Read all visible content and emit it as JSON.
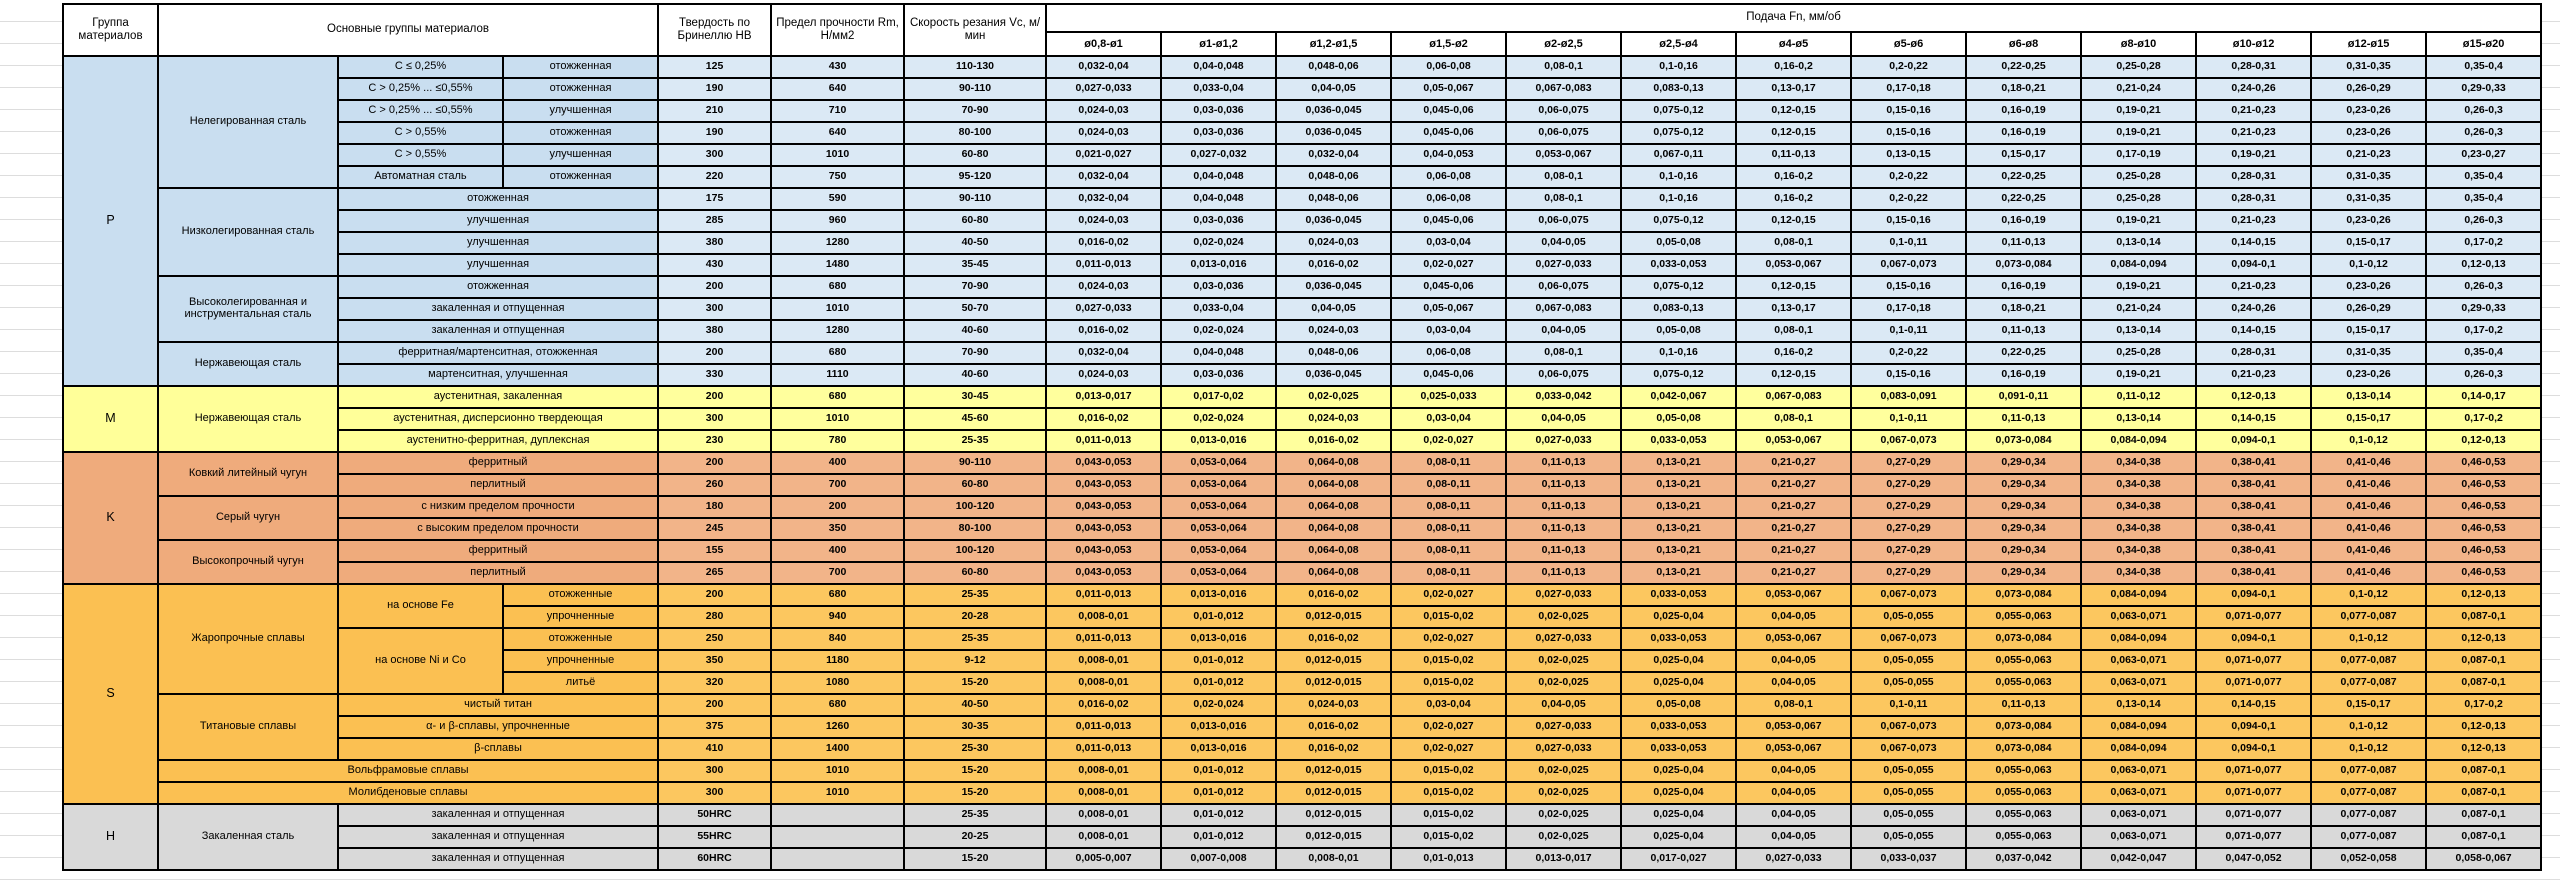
{
  "header": {
    "group": "Группа материалов",
    "materials": "Основные группы материалов",
    "hardness": "Твердость по Бринеллю HB",
    "strength": "Предел прочности Rm, Н/мм2",
    "speed": "Скорость резания Vc, м/мин",
    "feed": "Подача Fn, мм/об",
    "diameters": [
      "ø0,8-ø1",
      "ø1-ø1,2",
      "ø1,2-ø1,5",
      "ø1,5-ø2",
      "ø2-ø2,5",
      "ø2,5-ø4",
      "ø4-ø5",
      "ø5-ø6",
      "ø6-ø8",
      "ø8-ø10",
      "ø10-ø12",
      "ø12-ø15",
      "ø15-ø20"
    ]
  },
  "feed_patterns": {
    "A": [
      "0,032-0,04",
      "0,04-0,048",
      "0,048-0,06",
      "0,06-0,08",
      "0,08-0,1",
      "0,1-0,16",
      "0,16-0,2",
      "0,2-0,22",
      "0,22-0,25",
      "0,25-0,28",
      "0,28-0,31",
      "0,31-0,35",
      "0,35-0,4"
    ],
    "B": [
      "0,027-0,033",
      "0,033-0,04",
      "0,04-0,05",
      "0,05-0,067",
      "0,067-0,083",
      "0,083-0,13",
      "0,13-0,17",
      "0,17-0,18",
      "0,18-0,21",
      "0,21-0,24",
      "0,24-0,26",
      "0,26-0,29",
      "0,29-0,33"
    ],
    "C": [
      "0,024-0,03",
      "0,03-0,036",
      "0,036-0,045",
      "0,045-0,06",
      "0,06-0,075",
      "0,075-0,12",
      "0,12-0,15",
      "0,15-0,16",
      "0,16-0,19",
      "0,19-0,21",
      "0,21-0,23",
      "0,23-0,26",
      "0,26-0,3"
    ],
    "D": [
      "0,021-0,027",
      "0,027-0,032",
      "0,032-0,04",
      "0,04-0,053",
      "0,053-0,067",
      "0,067-0,11",
      "0,11-0,13",
      "0,13-0,15",
      "0,15-0,17",
      "0,17-0,19",
      "0,19-0,21",
      "0,21-0,23",
      "0,23-0,27"
    ],
    "E": [
      "0,016-0,02",
      "0,02-0,024",
      "0,024-0,03",
      "0,03-0,04",
      "0,04-0,05",
      "0,05-0,08",
      "0,08-0,1",
      "0,1-0,11",
      "0,11-0,13",
      "0,13-0,14",
      "0,14-0,15",
      "0,15-0,17",
      "0,17-0,2"
    ],
    "F": [
      "0,011-0,013",
      "0,013-0,016",
      "0,016-0,02",
      "0,02-0,027",
      "0,027-0,033",
      "0,033-0,053",
      "0,053-0,067",
      "0,067-0,073",
      "0,073-0,084",
      "0,084-0,094",
      "0,094-0,1",
      "0,1-0,12",
      "0,12-0,13"
    ],
    "M1": [
      "0,013-0,017",
      "0,017-0,02",
      "0,02-0,025",
      "0,025-0,033",
      "0,033-0,042",
      "0,042-0,067",
      "0,067-0,083",
      "0,083-0,091",
      "0,091-0,11",
      "0,11-0,12",
      "0,12-0,13",
      "0,13-0,14",
      "0,14-0,17"
    ],
    "K": [
      "0,043-0,053",
      "0,053-0,064",
      "0,064-0,08",
      "0,08-0,11",
      "0,11-0,13",
      "0,13-0,21",
      "0,21-0,27",
      "0,27-0,29",
      "0,29-0,34",
      "0,34-0,38",
      "0,38-0,41",
      "0,41-0,46",
      "0,46-0,53"
    ],
    "G": [
      "0,008-0,01",
      "0,01-0,012",
      "0,012-0,015",
      "0,015-0,02",
      "0,02-0,025",
      "0,025-0,04",
      "0,04-0,05",
      "0,05-0,055",
      "0,055-0,063",
      "0,063-0,071",
      "0,071-0,077",
      "0,077-0,087",
      "0,087-0,1"
    ],
    "H60": [
      "0,005-0,007",
      "0,007-0,008",
      "0,008-0,01",
      "0,01-0,013",
      "0,013-0,017",
      "0,017-0,027",
      "0,027-0,033",
      "0,033-0,037",
      "0,037-0,042",
      "0,042-0,047",
      "0,047-0,052",
      "0,052-0,058",
      "0,058-0,067"
    ]
  },
  "groups": [
    {
      "letter": "P",
      "color": "#dbe9f5",
      "label_color": "#c9def0",
      "rows": [
        {
          "cells": [
            {
              "t": "Нелегированная сталь",
              "rs": 6
            },
            {
              "t": "C ≤ 0,25%"
            },
            {
              "t": "отожженная"
            }
          ],
          "hb": "125",
          "rm": "430",
          "vc": "110-130",
          "feed": "A"
        },
        {
          "cells": [
            {
              "t": "C > 0,25% ... ≤0,55%"
            },
            {
              "t": "отожженная"
            }
          ],
          "hb": "190",
          "rm": "640",
          "vc": "90-110",
          "feed": "B"
        },
        {
          "cells": [
            {
              "t": "C > 0,25% ... ≤0,55%"
            },
            {
              "t": "улучшенная"
            }
          ],
          "hb": "210",
          "rm": "710",
          "vc": "70-90",
          "feed": "C"
        },
        {
          "cells": [
            {
              "t": "C > 0,55%"
            },
            {
              "t": "отожженная"
            }
          ],
          "hb": "190",
          "rm": "640",
          "vc": "80-100",
          "feed": "C"
        },
        {
          "cells": [
            {
              "t": "C > 0,55%"
            },
            {
              "t": "улучшенная"
            }
          ],
          "hb": "300",
          "rm": "1010",
          "vc": "60-80",
          "feed": "D"
        },
        {
          "cells": [
            {
              "t": "Автоматная сталь"
            },
            {
              "t": "отожженная"
            }
          ],
          "hb": "220",
          "rm": "750",
          "vc": "95-120",
          "feed": "A"
        },
        {
          "cells": [
            {
              "t": "Низколегированная сталь",
              "rs": 4
            },
            {
              "t": "отожженная",
              "cs": 2
            }
          ],
          "hb": "175",
          "rm": "590",
          "vc": "90-110",
          "feed": "A"
        },
        {
          "cells": [
            {
              "t": "улучшенная",
              "cs": 2
            }
          ],
          "hb": "285",
          "rm": "960",
          "vc": "60-80",
          "feed": "C"
        },
        {
          "cells": [
            {
              "t": "улучшенная",
              "cs": 2
            }
          ],
          "hb": "380",
          "rm": "1280",
          "vc": "40-50",
          "feed": "E"
        },
        {
          "cells": [
            {
              "t": "улучшенная",
              "cs": 2
            }
          ],
          "hb": "430",
          "rm": "1480",
          "vc": "35-45",
          "feed": "F"
        },
        {
          "cells": [
            {
              "t": "Высоколегированная и инструментальная сталь",
              "rs": 3
            },
            {
              "t": "отожженная",
              "cs": 2
            }
          ],
          "hb": "200",
          "rm": "680",
          "vc": "70-90",
          "feed": "C"
        },
        {
          "cells": [
            {
              "t": "закаленная и отпущенная",
              "cs": 2
            }
          ],
          "hb": "300",
          "rm": "1010",
          "vc": "50-70",
          "feed": "B"
        },
        {
          "cells": [
            {
              "t": "закаленная и отпущенная",
              "cs": 2
            }
          ],
          "hb": "380",
          "rm": "1280",
          "vc": "40-60",
          "feed": "E"
        },
        {
          "cells": [
            {
              "t": "Нержавеющая сталь",
              "rs": 2
            },
            {
              "t": "ферритная/мартенситная, отожженная",
              "cs": 2
            }
          ],
          "hb": "200",
          "rm": "680",
          "vc": "70-90",
          "feed": "A"
        },
        {
          "cells": [
            {
              "t": "мартенситная, улучшенная",
              "cs": 2
            }
          ],
          "hb": "330",
          "rm": "1110",
          "vc": "40-60",
          "feed": "C"
        }
      ]
    },
    {
      "letter": "M",
      "color": "#ffff9d",
      "label_color": "#ffff99",
      "rows": [
        {
          "cells": [
            {
              "t": "Нержавеющая сталь",
              "rs": 3
            },
            {
              "t": "аустенитная, закаленная",
              "cs": 2
            }
          ],
          "hb": "200",
          "rm": "680",
          "vc": "30-45",
          "feed": "M1"
        },
        {
          "cells": [
            {
              "t": "аустенитная, дисперсионно твердеющая",
              "cs": 2
            }
          ],
          "hb": "300",
          "rm": "1010",
          "vc": "45-60",
          "feed": "E"
        },
        {
          "cells": [
            {
              "t": "аустенитно-ферритная, дуплексная",
              "cs": 2
            }
          ],
          "hb": "230",
          "rm": "780",
          "vc": "25-35",
          "feed": "F"
        }
      ]
    },
    {
      "letter": "K",
      "color": "#f2b489",
      "label_color": "#efab7c",
      "rows": [
        {
          "cells": [
            {
              "t": "Ковкий литейный чугун",
              "rs": 2
            },
            {
              "t": "ферритный",
              "cs": 2
            }
          ],
          "hb": "200",
          "rm": "400",
          "vc": "90-110",
          "feed": "K"
        },
        {
          "cells": [
            {
              "t": "перлитный",
              "cs": 2
            }
          ],
          "hb": "260",
          "rm": "700",
          "vc": "60-80",
          "feed": "K"
        },
        {
          "cells": [
            {
              "t": "Серый чугун",
              "rs": 2
            },
            {
              "t": "с низким пределом прочности",
              "cs": 2
            }
          ],
          "hb": "180",
          "rm": "200",
          "vc": "100-120",
          "feed": "K"
        },
        {
          "cells": [
            {
              "t": "с высоким пределом прочности",
              "cs": 2
            }
          ],
          "hb": "245",
          "rm": "350",
          "vc": "80-100",
          "feed": "K"
        },
        {
          "cells": [
            {
              "t": "Высокопрочный чугун",
              "rs": 2
            },
            {
              "t": "ферритный",
              "cs": 2
            }
          ],
          "hb": "155",
          "rm": "400",
          "vc": "100-120",
          "feed": "K"
        },
        {
          "cells": [
            {
              "t": "перлитный",
              "cs": 2
            }
          ],
          "hb": "265",
          "rm": "700",
          "vc": "60-80",
          "feed": "K"
        }
      ]
    },
    {
      "letter": "S",
      "color": "#fcc75f",
      "label_color": "#fbc052",
      "rows": [
        {
          "cells": [
            {
              "t": "Жаропрочные сплавы",
              "rs": 5
            },
            {
              "t": "на основе Fe",
              "rs": 2
            },
            {
              "t": "отожженные"
            }
          ],
          "hb": "200",
          "rm": "680",
          "vc": "25-35",
          "feed": "F"
        },
        {
          "cells": [
            {
              "t": "упрочненные"
            }
          ],
          "hb": "280",
          "rm": "940",
          "vc": "20-28",
          "feed": "G"
        },
        {
          "cells": [
            {
              "t": "на основе Ni и Co",
              "rs": 3
            },
            {
              "t": "отожженные"
            }
          ],
          "hb": "250",
          "rm": "840",
          "vc": "25-35",
          "feed": "F"
        },
        {
          "cells": [
            {
              "t": "упрочненные"
            }
          ],
          "hb": "350",
          "rm": "1180",
          "vc": "9-12",
          "feed": "G"
        },
        {
          "cells": [
            {
              "t": "литьё"
            }
          ],
          "hb": "320",
          "rm": "1080",
          "vc": "15-20",
          "feed": "G"
        },
        {
          "cells": [
            {
              "t": "Титановые сплавы",
              "rs": 3
            },
            {
              "t": "чистый титан",
              "cs": 2
            }
          ],
          "hb": "200",
          "rm": "680",
          "vc": "40-50",
          "feed": "E"
        },
        {
          "cells": [
            {
              "t": "α- и β-сплавы, упрочненные",
              "cs": 2
            }
          ],
          "hb": "375",
          "rm": "1260",
          "vc": "30-35",
          "feed": "F"
        },
        {
          "cells": [
            {
              "t": "β-сплавы",
              "cs": 2
            }
          ],
          "hb": "410",
          "rm": "1400",
          "vc": "25-30",
          "feed": "F"
        },
        {
          "cells": [
            {
              "t": "Вольфрамовые сплавы",
              "cs": 3
            }
          ],
          "hb": "300",
          "rm": "1010",
          "vc": "15-20",
          "feed": "G"
        },
        {
          "cells": [
            {
              "t": "Молибденовые сплавы",
              "cs": 3
            }
          ],
          "hb": "300",
          "rm": "1010",
          "vc": "15-20",
          "feed": "G"
        }
      ]
    },
    {
      "letter": "H",
      "color": "#d9d9d9",
      "label_color": "#d9d9d9",
      "rows": [
        {
          "cells": [
            {
              "t": "Закаленная сталь",
              "rs": 3
            },
            {
              "t": "закаленная и отпущенная",
              "cs": 2
            }
          ],
          "hb": "50HRC",
          "rm": "",
          "vc": "25-35",
          "feed": "G"
        },
        {
          "cells": [
            {
              "t": "закаленная и отпущенная",
              "cs": 2
            }
          ],
          "hb": "55HRC",
          "rm": "",
          "vc": "20-25",
          "feed": "G"
        },
        {
          "cells": [
            {
              "t": "закаленная и отпущенная",
              "cs": 2
            }
          ],
          "hb": "60HRC",
          "rm": "",
          "vc": "15-20",
          "feed": "H60"
        }
      ]
    }
  ]
}
